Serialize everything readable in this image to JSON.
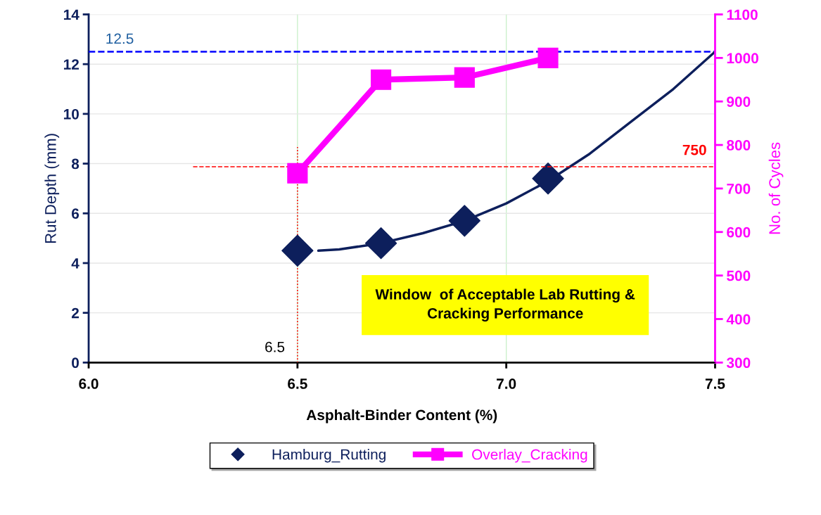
{
  "chart_data": {
    "type": "scatter",
    "xlabel": "Asphalt-Binder Content (%)",
    "ylabel": "Rut Depth (mm)",
    "y2label": "No. of Cycles",
    "xlim": [
      6.0,
      7.5
    ],
    "xticks": [
      {
        "value": 6.0,
        "label": "6.0"
      },
      {
        "value": 6.5,
        "label": "6.5"
      },
      {
        "value": 7.0,
        "label": "7.0"
      },
      {
        "value": 7.5,
        "label": "7.5"
      }
    ],
    "ylim": [
      0,
      14
    ],
    "yticks": [
      0,
      2,
      4,
      6,
      8,
      10,
      12,
      14
    ],
    "y2lim": [
      300,
      1100
    ],
    "y2ticks": [
      300,
      400,
      500,
      600,
      700,
      800,
      900,
      1000,
      1100
    ],
    "grid": true,
    "legend": "bottom",
    "series": [
      {
        "name": "Hamburg_Rutting",
        "color": "#0d1f5c",
        "marker": "diamond",
        "x": [
          6.5,
          6.7,
          6.9,
          7.1
        ],
        "values": [
          4.5,
          4.8,
          5.7,
          7.4
        ]
      },
      {
        "type": "line",
        "color": "#0d1f5c",
        "marker": "none",
        "x": [
          6.55,
          6.6,
          6.7,
          6.8,
          6.9,
          7.0,
          7.1,
          7.2,
          7.3,
          7.4,
          7.5
        ],
        "values": [
          4.5,
          4.55,
          4.8,
          5.2,
          5.7,
          6.4,
          7.3,
          8.4,
          9.7,
          11.0,
          12.5
        ]
      },
      {
        "name": "Overlay_Cracking",
        "type": "line",
        "axis": "y2",
        "color": "#ff00ff",
        "marker": "square",
        "x": [
          6.5,
          6.7,
          6.9,
          7.1
        ],
        "values": [
          735,
          950,
          955,
          1000
        ]
      }
    ],
    "ref_lines": [
      {
        "axis": "y",
        "value": 12.5,
        "label": "12.5",
        "color": "#0000ff",
        "line_style": "dashed"
      },
      {
        "axis": "y2",
        "value": 750,
        "label": "750",
        "color": "#ff0000",
        "line_style": "dashed"
      },
      {
        "axis": "x",
        "value": 6.5,
        "label": "6.5",
        "color": "#ff0000",
        "line_style": "dotted"
      }
    ],
    "annotations": [
      "Window  of Acceptable Lab Rutting &\nCracking Performance"
    ]
  }
}
